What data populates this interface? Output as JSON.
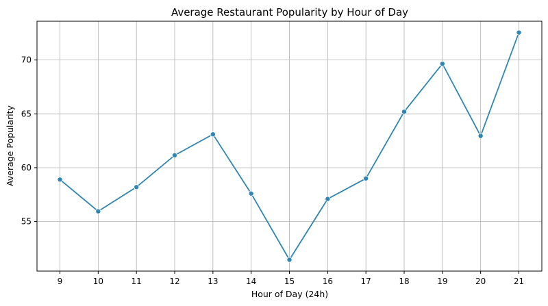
{
  "chart_data": {
    "type": "line",
    "title": "Average Restaurant Popularity by Hour of Day",
    "xlabel": "Hour of Day (24h)",
    "ylabel": "Average Popularity",
    "x": [
      9,
      10,
      11,
      12,
      13,
      14,
      15,
      16,
      17,
      18,
      19,
      20,
      21
    ],
    "x_tick_labels": [
      "9",
      "10",
      "11",
      "12",
      "13",
      "14",
      "15",
      "16",
      "17",
      "18",
      "19",
      "20",
      "21"
    ],
    "y_ticks": [
      55,
      60,
      65,
      70
    ],
    "y_tick_labels": [
      "55",
      "60",
      "65",
      "70"
    ],
    "xlim": [
      8.4,
      21.6
    ],
    "ylim": [
      50.4,
      73.6
    ],
    "grid": true,
    "series": [
      {
        "values": [
          58.9,
          55.95,
          58.2,
          61.15,
          63.1,
          57.6,
          51.45,
          57.1,
          59.0,
          65.2,
          69.65,
          62.95,
          72.55
        ],
        "color": "#2f86b4",
        "marker": "circle"
      }
    ]
  }
}
